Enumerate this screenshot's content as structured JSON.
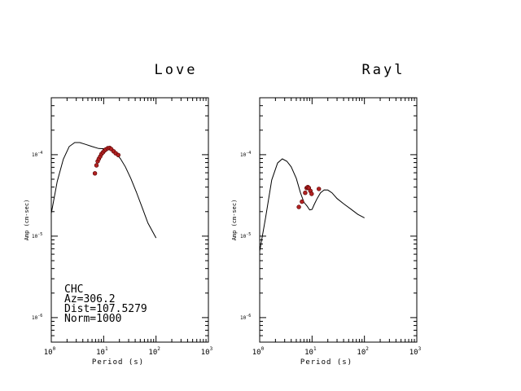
{
  "chart_data": [
    {
      "type": "line",
      "title": "Love",
      "xlabel": "Period (s)",
      "ylabel": "Amp (cm-sec)",
      "x_scale": "log",
      "y_scale": "log",
      "xlim": [
        1,
        1000
      ],
      "ylim": [
        5e-07,
        0.0005
      ],
      "x_ticks": [
        {
          "base": "10",
          "exp": "0"
        },
        {
          "base": "10",
          "exp": "1"
        },
        {
          "base": "10",
          "exp": "2"
        },
        {
          "base": "10",
          "exp": "3"
        }
      ],
      "y_ticks": [
        {
          "base": "10",
          "exp": "-6",
          "value": 1e-06
        },
        {
          "base": "10",
          "exp": "-5",
          "value": 1e-05
        },
        {
          "base": "10",
          "exp": "-4",
          "value": 0.0001
        }
      ],
      "series": [
        {
          "kind": "line",
          "x": [
            1.0,
            1.3,
            1.7,
            2.2,
            2.8,
            3.5,
            4.5,
            6.0,
            8.0,
            10.5,
            13.5,
            17.0,
            21.0,
            26.0,
            33.0,
            42.0,
            55.0,
            70.0,
            100.0
          ],
          "y": [
            1.9e-05,
            4.7e-05,
            8.8e-05,
            0.000126,
            0.000141,
            0.000141,
            0.000134,
            0.000126,
            0.000119,
            0.000118,
            0.000116,
            0.000105,
            8.9e-05,
            7.1e-05,
            5.1e-05,
            3.5e-05,
            2.2e-05,
            1.45e-05,
            9.5e-06
          ]
        },
        {
          "kind": "points",
          "color": "#b22222",
          "x": [
            6.8,
            7.3,
            7.7,
            8.1,
            8.6,
            9.1,
            9.7,
            10.3,
            11.0,
            12.0,
            13.0,
            14.0,
            15.5,
            17.0,
            19.0
          ],
          "y": [
            5.9e-05,
            7.4e-05,
            8.3e-05,
            8.9e-05,
            9.5e-05,
            0.000102,
            0.000107,
            0.000112,
            0.000116,
            0.00012,
            0.000121,
            0.000117,
            0.00011,
            0.000104,
            9.9e-05
          ]
        }
      ]
    },
    {
      "type": "line",
      "title": "Rayl",
      "xlabel": "Period (s)",
      "ylabel": "Amp (cm-sec)",
      "x_scale": "log",
      "y_scale": "log",
      "xlim": [
        1,
        1000
      ],
      "ylim": [
        5e-07,
        0.0005
      ],
      "x_ticks": [
        {
          "base": "10",
          "exp": "0"
        },
        {
          "base": "10",
          "exp": "1"
        },
        {
          "base": "10",
          "exp": "2"
        },
        {
          "base": "10",
          "exp": "3"
        }
      ],
      "y_ticks": [
        {
          "base": "10",
          "exp": "-6",
          "value": 1e-06
        },
        {
          "base": "10",
          "exp": "-5",
          "value": 1e-05
        },
        {
          "base": "10",
          "exp": "-4",
          "value": 0.0001
        }
      ],
      "series": [
        {
          "kind": "line",
          "x": [
            1.0,
            1.3,
            1.7,
            2.2,
            2.7,
            3.3,
            4.0,
            5.0,
            6.0,
            7.0,
            8.0,
            9.0,
            10.0,
            11.0,
            12.5,
            14.5,
            17.0,
            20.0,
            24.0,
            30.0,
            40.0,
            55.0,
            75.0,
            100.0
          ],
          "y": [
            6.5e-06,
            1.7e-05,
            4.9e-05,
            7.9e-05,
            8.9e-05,
            8.3e-05,
            7.1e-05,
            5.1e-05,
            3.4e-05,
            2.6e-05,
            2.35e-05,
            2.1e-05,
            2.13e-05,
            2.45e-05,
            2.9e-05,
            3.4e-05,
            3.7e-05,
            3.68e-05,
            3.4e-05,
            2.9e-05,
            2.5e-05,
            2.15e-05,
            1.85e-05,
            1.68e-05
          ]
        },
        {
          "kind": "points",
          "color": "#b22222",
          "x": [
            5.6,
            6.4,
            7.4,
            7.9,
            8.3,
            8.7,
            9.3,
            9.8,
            13.5
          ],
          "y": [
            2.28e-05,
            2.65e-05,
            3.4e-05,
            3.9e-05,
            4e-05,
            3.9e-05,
            3.6e-05,
            3.3e-05,
            3.8e-05
          ]
        }
      ]
    }
  ],
  "annotation": {
    "lines": [
      "CHC",
      "Az=306.2",
      "Dist=107.5279",
      "Norm=1000"
    ]
  }
}
